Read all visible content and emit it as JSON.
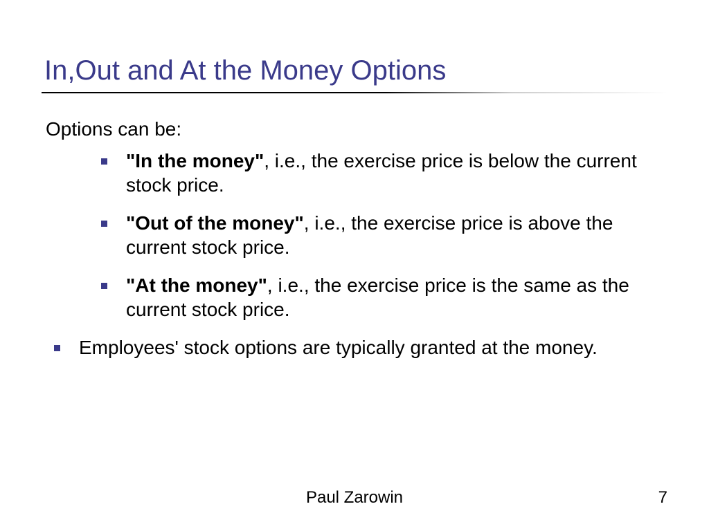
{
  "slide": {
    "title": "In,Out and At the Money Options",
    "intro": "Options can be:",
    "bullets": [
      {
        "bold": "\"In the money\"",
        "rest": ", i.e., the exercise price is below the current stock price."
      },
      {
        "bold": "\"Out of the money\"",
        "rest": ", i.e., the exercise price is above the current stock price."
      },
      {
        "bold": "\"At the money\"",
        "rest": ", i.e., the exercise price is the same as the current stock price."
      }
    ],
    "main_bullet": "Employees' stock options are typically granted at the money.",
    "footer_author": "Paul Zarowin",
    "page_number": "7"
  },
  "style": {
    "title_color": "#3a3a8a",
    "bullet_color": "#3a3a8a",
    "text_color": "#000000",
    "background": "#ffffff",
    "title_fontsize": 40,
    "body_fontsize": 28,
    "footer_fontsize": 24
  }
}
